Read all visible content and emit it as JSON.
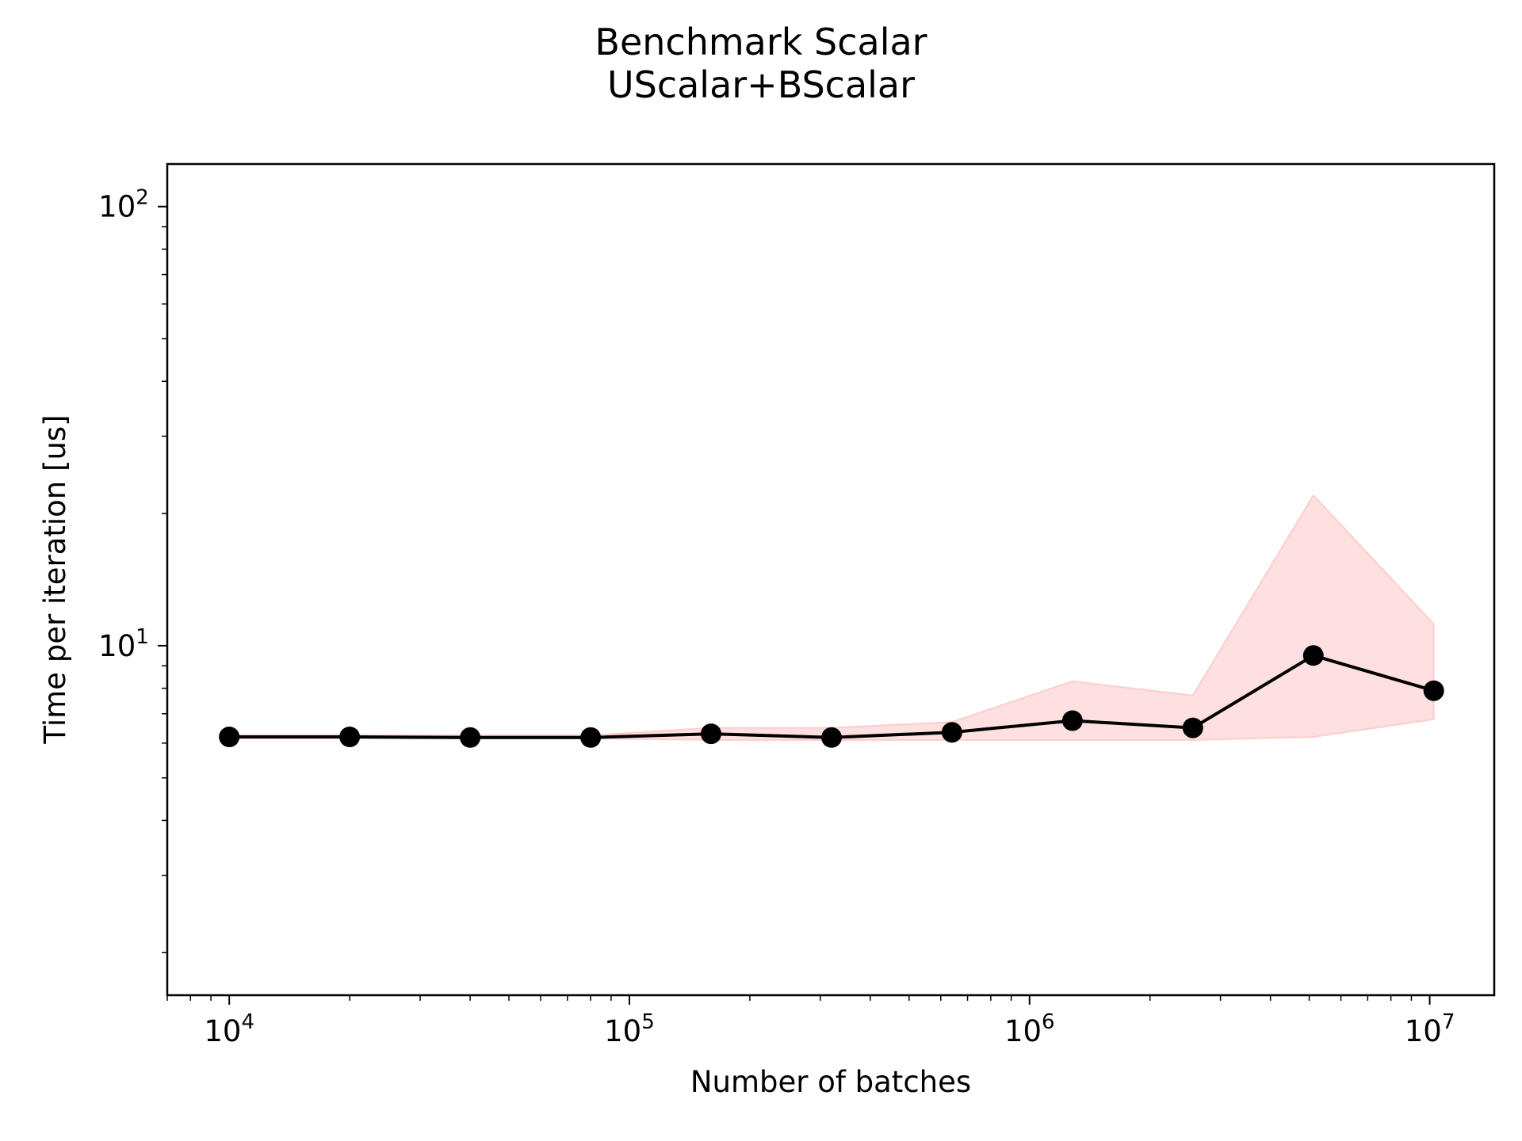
{
  "chart_data": {
    "type": "line",
    "title": "Benchmark Scalar",
    "subtitle": "UScalar+BScalar",
    "xlabel": "Number of batches",
    "ylabel": "Time per iteration [us]",
    "xscale": "log",
    "yscale": "log",
    "xlim": [
      7000,
      14500000
    ],
    "ylim": [
      1.6,
      125
    ],
    "grid": false,
    "x_ticks": [
      {
        "value": 10000,
        "base": "10",
        "exp": "4"
      },
      {
        "value": 100000,
        "base": "10",
        "exp": "5"
      },
      {
        "value": 1000000,
        "base": "10",
        "exp": "6"
      },
      {
        "value": 10000000,
        "base": "10",
        "exp": "7"
      }
    ],
    "y_ticks": [
      {
        "value": 10,
        "base": "10",
        "exp": "1"
      },
      {
        "value": 100,
        "base": "10",
        "exp": "2"
      }
    ],
    "series": [
      {
        "x": [
          10000,
          20000,
          40000,
          80000,
          160000,
          320000,
          640000,
          1280000,
          2560000,
          5120000,
          10240000
        ],
        "y": [
          6.2,
          6.2,
          6.18,
          6.18,
          6.3,
          6.18,
          6.35,
          6.75,
          6.5,
          9.5,
          7.9
        ],
        "band_upper": [
          6.25,
          6.25,
          6.25,
          6.25,
          6.5,
          6.5,
          6.7,
          8.3,
          7.7,
          22,
          11.2
        ],
        "band_lower": [
          6.15,
          6.15,
          6.15,
          6.15,
          6.1,
          6.1,
          6.1,
          6.1,
          6.1,
          6.2,
          6.8
        ],
        "line_color": "#000000",
        "band_color": "#ffcccc"
      }
    ]
  }
}
